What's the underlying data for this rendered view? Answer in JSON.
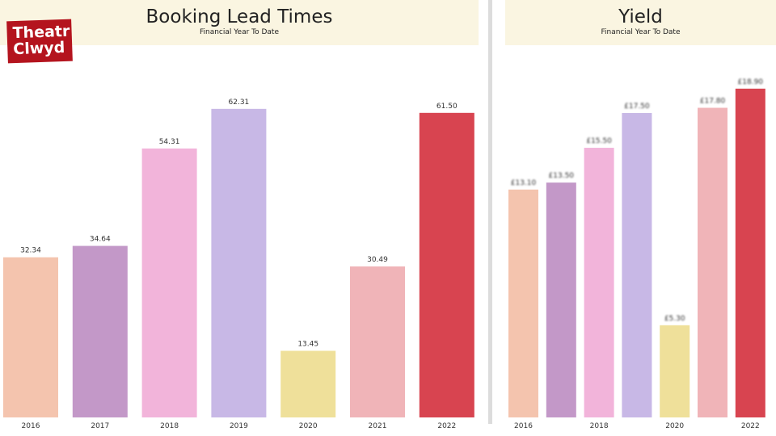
{
  "logo": {
    "line1": "Theatr",
    "line2": "Clwyd"
  },
  "left_panel": {
    "title": "Booking Lead Times",
    "subtitle": "Financial Year To Date"
  },
  "right_panel": {
    "title": "Yield",
    "subtitle": "Financial Year To Date"
  },
  "chart_data": [
    {
      "type": "bar",
      "title": "Booking Lead Times",
      "subtitle": "Financial Year To Date",
      "categories": [
        "2016",
        "2017",
        "2018",
        "2019",
        "2020",
        "2021",
        "2022"
      ],
      "values": [
        32.34,
        34.64,
        54.31,
        62.31,
        13.45,
        30.49,
        61.5
      ],
      "labels": [
        "32.34",
        "34.64",
        "54.31",
        "62.31",
        "13.45",
        "30.49",
        "61.50"
      ],
      "colors": [
        "#f4c4ae",
        "#c398c8",
        "#f2b4da",
        "#c8b8e6",
        "#efe09a",
        "#f0b4b8",
        "#d84450"
      ],
      "ylim": [
        0,
        75
      ],
      "grid": false,
      "xlabel": "",
      "ylabel": ""
    },
    {
      "type": "bar",
      "title": "Yield",
      "subtitle": "Financial Year To Date",
      "categories": [
        "2016",
        "",
        "2018",
        "",
        "2020",
        "",
        "2022"
      ],
      "values": [
        13.1,
        13.5,
        15.5,
        17.5,
        5.3,
        17.8,
        18.9
      ],
      "labels": [
        "£13.10",
        "£13.50",
        "£15.50",
        "£17.50",
        "£5.30",
        "£17.80",
        "£18.90"
      ],
      "colors": [
        "#f4c4ae",
        "#c398c8",
        "#f2b4da",
        "#c8b8e6",
        "#efe09a",
        "#f0b4b8",
        "#d84450"
      ],
      "ylim": [
        0,
        22
      ],
      "grid": false,
      "xlabel": "",
      "ylabel": ""
    }
  ]
}
